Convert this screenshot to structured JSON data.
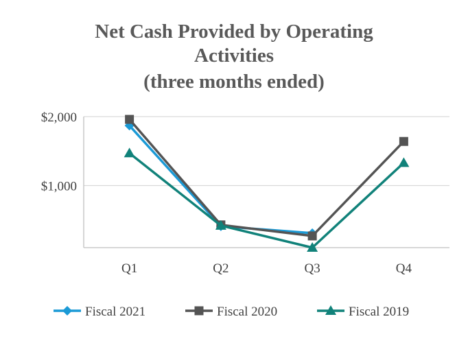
{
  "chart_data": {
    "type": "line",
    "title": [
      "Net Cash Provided by Operating",
      "Activities",
      "(three months ended)"
    ],
    "xlabel": "",
    "ylabel": "",
    "categories": [
      "Q1",
      "Q2",
      "Q3",
      "Q4"
    ],
    "y_ticks": [
      1000,
      2000
    ],
    "y_tick_labels": [
      "$1,000",
      "$2,000"
    ],
    "ylim": [
      100,
      2000
    ],
    "grid": true,
    "legend_position": "bottom",
    "series": [
      {
        "name": "Fiscal 2021",
        "values": [
          1870,
          410,
          310,
          null
        ],
        "color": "#1b9ad6",
        "marker": "diamond"
      },
      {
        "name": "Fiscal 2020",
        "values": [
          1960,
          430,
          270,
          1640
        ],
        "color": "#545454",
        "marker": "square"
      },
      {
        "name": "Fiscal 2019",
        "values": [
          1470,
          420,
          100,
          1330
        ],
        "color": "#11827a",
        "marker": "triangle"
      }
    ]
  }
}
